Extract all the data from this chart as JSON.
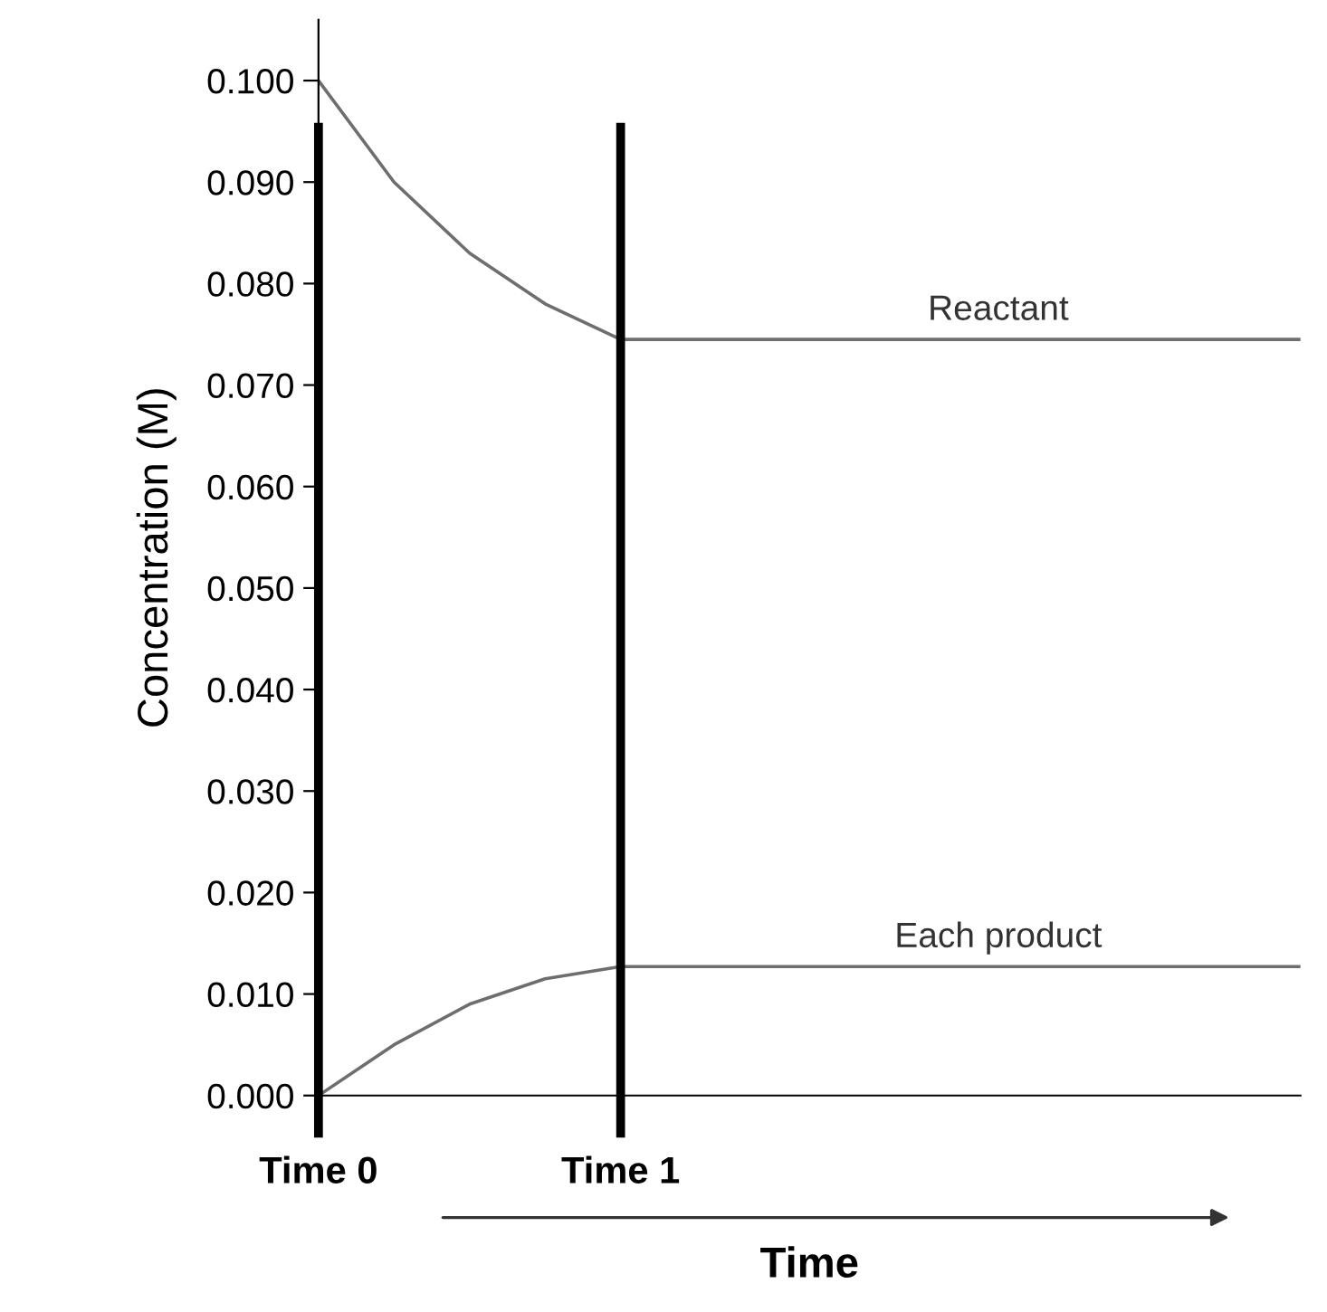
{
  "chart_data": {
    "type": "line",
    "xlabel": "Time",
    "ylabel": "Concentration (M)",
    "categories": [
      "Time 0",
      null,
      null,
      null,
      "Time 1",
      null,
      null,
      null,
      null,
      null,
      null,
      null,
      null,
      null
    ],
    "ylim": [
      0,
      0.106
    ],
    "yticks": [
      {
        "value": 0,
        "label": "0.000"
      },
      {
        "value": 0.01,
        "label": "0.010"
      },
      {
        "value": 0.02,
        "label": "0.020"
      },
      {
        "value": 0.03,
        "label": "0.030"
      },
      {
        "value": 0.04,
        "label": "0.040"
      },
      {
        "value": 0.05,
        "label": "0.050"
      },
      {
        "value": 0.06,
        "label": "0.060"
      },
      {
        "value": 0.07,
        "label": "0.070"
      },
      {
        "value": 0.08,
        "label": "0.080"
      },
      {
        "value": 0.09,
        "label": "0.090"
      },
      {
        "value": 0.1,
        "label": "0.100"
      }
    ],
    "series": [
      {
        "name": "Reactant",
        "color": "#6e6e6e",
        "values": [
          0.1,
          0.09,
          0.083,
          0.078,
          0.0745,
          0.0745,
          0.0745,
          0.0745,
          0.0745,
          0.0745,
          0.0745,
          0.0745,
          0.0745,
          0.0745
        ]
      },
      {
        "name": "Each product",
        "color": "#6e6e6e",
        "values": [
          0,
          0.005,
          0.009,
          0.0115,
          0.0127,
          0.0127,
          0.0127,
          0.0127,
          0.0127,
          0.0127,
          0.0127,
          0.0127,
          0.0127,
          0.0127
        ]
      }
    ],
    "ref_lines": [
      {
        "axis": "x",
        "value": "Time 0",
        "color": "#000000"
      },
      {
        "axis": "x",
        "value": "Time 1",
        "color": "#000000"
      }
    ],
    "grid": false,
    "legend": false,
    "marker": "none",
    "line_style": "solid"
  }
}
